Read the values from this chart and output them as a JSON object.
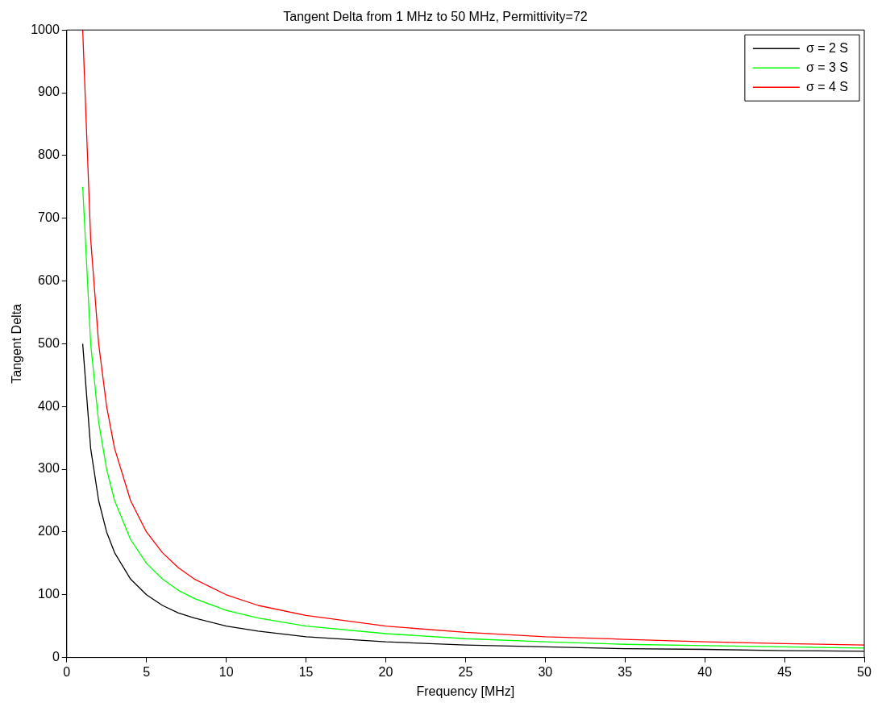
{
  "chart_data": {
    "type": "line",
    "title": "Tangent Delta from 1 MHz to 50 MHz, Permittivity=72",
    "xlabel": "Frequency [MHz]",
    "ylabel": "Tangent Delta",
    "x": [
      1,
      1.5,
      2,
      2.5,
      3,
      4,
      5,
      6,
      7,
      8,
      10,
      12,
      15,
      20,
      25,
      30,
      35,
      40,
      45,
      50
    ],
    "series": [
      {
        "name": "σ = 2 S",
        "color": "#000000",
        "values": [
          500,
          333,
          250,
          200,
          167,
          125,
          100,
          83,
          71,
          63,
          50,
          42,
          33,
          25,
          20,
          17,
          14,
          13,
          11,
          10
        ]
      },
      {
        "name": "σ = 3 S",
        "color": "#00ff00",
        "values": [
          750,
          500,
          375,
          300,
          250,
          188,
          150,
          125,
          107,
          94,
          75,
          63,
          50,
          38,
          30,
          25,
          21,
          19,
          17,
          15
        ]
      },
      {
        "name": "σ = 4 S",
        "color": "#ff0000",
        "values": [
          1000,
          667,
          500,
          400,
          333,
          250,
          200,
          167,
          143,
          125,
          100,
          83,
          67,
          50,
          40,
          33,
          29,
          25,
          22,
          20
        ]
      }
    ],
    "xlim": [
      0,
      50
    ],
    "xticks": [
      0,
      5,
      10,
      15,
      20,
      25,
      30,
      35,
      40,
      45,
      50
    ],
    "ylim": [
      0,
      1000
    ],
    "yticks": [
      0,
      100,
      200,
      300,
      400,
      500,
      600,
      700,
      800,
      900,
      1000
    ],
    "grid": false,
    "legend": "top right",
    "marker": "none",
    "line_style": "solid"
  }
}
